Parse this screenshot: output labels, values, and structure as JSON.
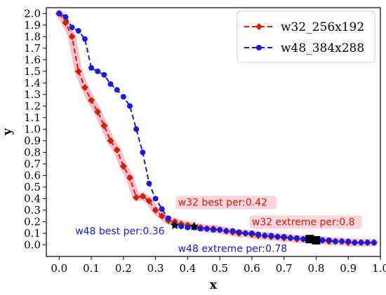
{
  "chart_data": {
    "type": "line",
    "xlabel": "x",
    "ylabel": "y",
    "xlim": [
      -0.04,
      1.0
    ],
    "ylim": [
      -0.1,
      2.05
    ],
    "xticks": [
      "0.0",
      "0.1",
      "0.2",
      "0.3",
      "0.4",
      "0.5",
      "0.6",
      "0.7",
      "0.8",
      "0.9",
      "1.0"
    ],
    "yticks": [
      "0.0",
      "0.1",
      "0.2",
      "0.3",
      "0.4",
      "0.5",
      "0.6",
      "0.7",
      "0.8",
      "0.9",
      "1.0",
      "1.1",
      "1.2",
      "1.3",
      "1.4",
      "1.5",
      "1.6",
      "1.7",
      "1.8",
      "1.9",
      "2.0"
    ],
    "legend_position": "top-right",
    "series": [
      {
        "name": "w32_256x192",
        "color": "#cc2200",
        "marker": "diamond",
        "x": [
          0.0,
          0.02,
          0.04,
          0.06,
          0.08,
          0.1,
          0.12,
          0.14,
          0.16,
          0.18,
          0.2,
          0.22,
          0.24,
          0.26,
          0.28,
          0.3,
          0.32,
          0.34,
          0.36,
          0.38,
          0.4,
          0.42,
          0.44,
          0.46,
          0.48,
          0.5,
          0.52,
          0.54,
          0.56,
          0.58,
          0.6,
          0.62,
          0.64,
          0.66,
          0.68,
          0.7,
          0.72,
          0.74,
          0.76,
          0.78,
          0.8,
          0.82,
          0.84,
          0.86,
          0.88,
          0.9,
          0.92,
          0.94,
          0.96,
          0.98
        ],
        "y": [
          2.0,
          1.92,
          1.8,
          1.5,
          1.36,
          1.25,
          1.15,
          1.03,
          0.9,
          0.82,
          0.68,
          0.58,
          0.41,
          0.42,
          0.38,
          0.3,
          0.25,
          0.21,
          0.2,
          0.18,
          0.17,
          0.16,
          0.15,
          0.14,
          0.14,
          0.13,
          0.12,
          0.11,
          0.1,
          0.1,
          0.09,
          0.08,
          0.08,
          0.07,
          0.07,
          0.06,
          0.06,
          0.05,
          0.05,
          0.05,
          0.04,
          0.04,
          0.03,
          0.03,
          0.03,
          0.02,
          0.02,
          0.02,
          0.02,
          0.02
        ]
      },
      {
        "name": "w48_384x288",
        "color": "#1a1adb",
        "marker": "circle",
        "x": [
          0.0,
          0.02,
          0.04,
          0.06,
          0.08,
          0.1,
          0.12,
          0.14,
          0.16,
          0.18,
          0.2,
          0.22,
          0.24,
          0.26,
          0.28,
          0.3,
          0.32,
          0.34,
          0.36,
          0.38,
          0.4,
          0.42,
          0.44,
          0.46,
          0.48,
          0.5,
          0.52,
          0.54,
          0.56,
          0.58,
          0.6,
          0.62,
          0.64,
          0.66,
          0.68,
          0.7,
          0.72,
          0.74,
          0.76,
          0.78,
          0.8,
          0.82,
          0.84,
          0.86,
          0.88,
          0.9,
          0.92,
          0.94,
          0.96,
          0.98
        ],
        "y": [
          2.0,
          1.97,
          1.88,
          1.85,
          1.78,
          1.53,
          1.5,
          1.47,
          1.39,
          1.34,
          1.28,
          1.2,
          1.0,
          0.8,
          0.53,
          0.4,
          0.31,
          0.23,
          0.17,
          0.16,
          0.15,
          0.15,
          0.14,
          0.14,
          0.13,
          0.13,
          0.12,
          0.12,
          0.11,
          0.1,
          0.1,
          0.09,
          0.08,
          0.08,
          0.07,
          0.07,
          0.06,
          0.06,
          0.05,
          0.05,
          0.05,
          0.04,
          0.04,
          0.03,
          0.03,
          0.03,
          0.02,
          0.02,
          0.02,
          0.02
        ]
      }
    ],
    "markers": [
      {
        "shape": "star",
        "x": 0.36,
        "y": 0.17
      },
      {
        "shape": "star",
        "x": 0.42,
        "y": 0.16
      },
      {
        "shape": "square",
        "x": 0.78,
        "y": 0.05
      },
      {
        "shape": "square",
        "x": 0.8,
        "y": 0.04
      }
    ],
    "annotations": [
      {
        "text": "w32 best per:0.42",
        "x": 0.37,
        "y": 0.34,
        "color": "#cc2200",
        "highlight": true
      },
      {
        "text": "w32 extreme per:0.8",
        "x": 0.6,
        "y": 0.17,
        "color": "#cc2200",
        "highlight": true
      },
      {
        "text": "w48 best per:0.36",
        "x": 0.05,
        "y": 0.09,
        "color": "#1a1adb",
        "highlight": false
      },
      {
        "text": "w48 extreme per:0.78",
        "x": 0.37,
        "y": -0.06,
        "color": "#1a1adb",
        "highlight": false
      }
    ]
  }
}
